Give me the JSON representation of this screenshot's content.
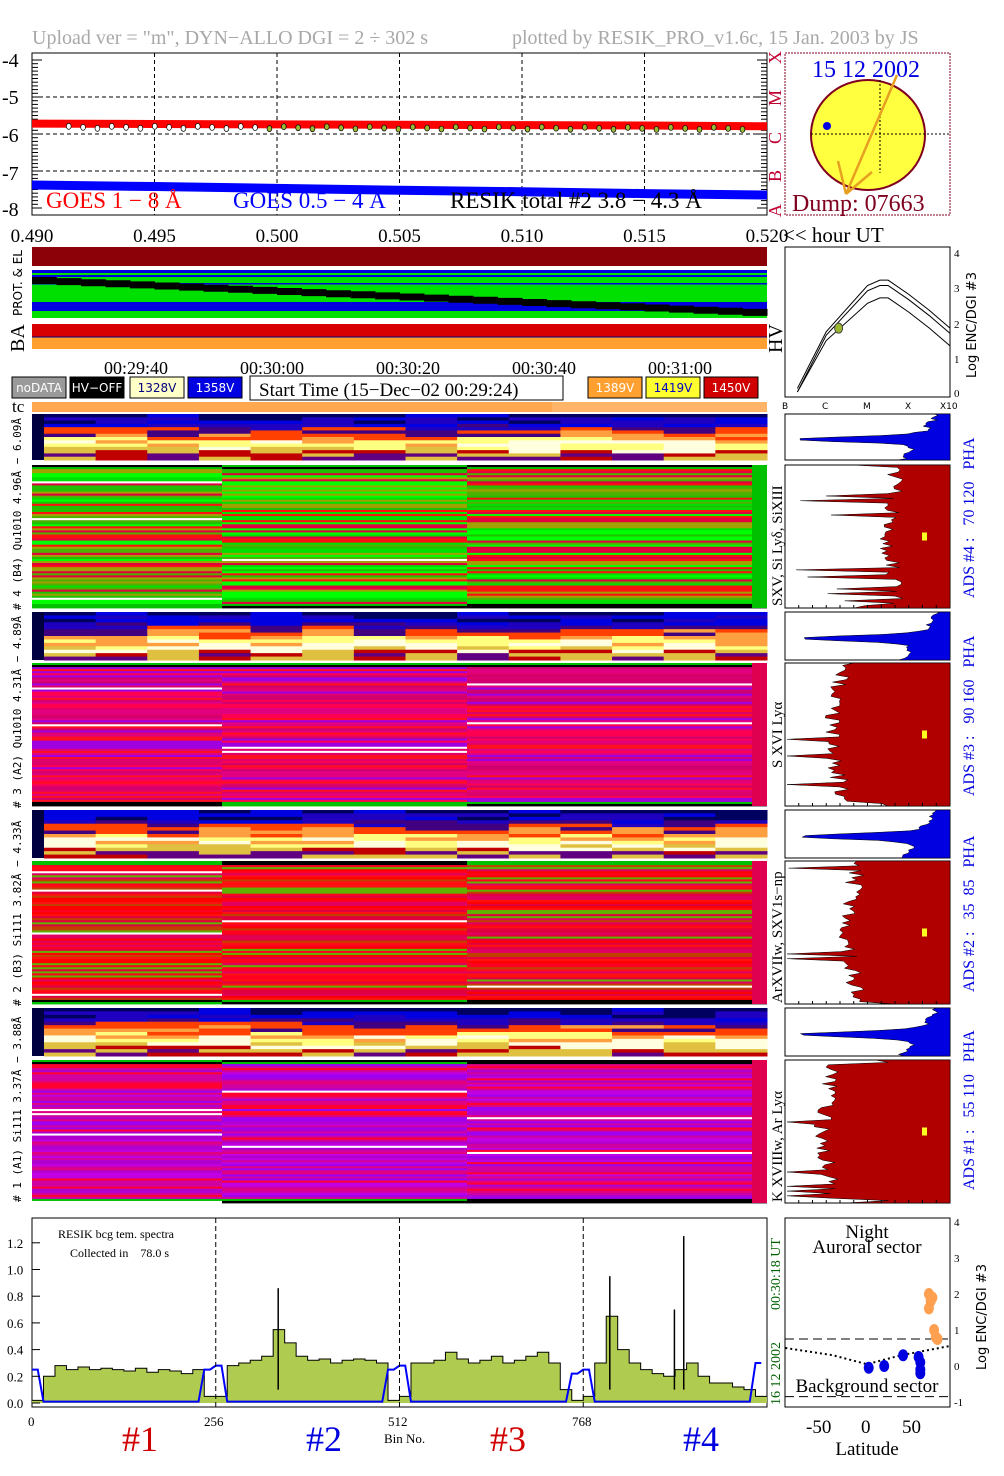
{
  "header": {
    "upload": "Upload ver = \"m\", DYN−ALLO DGI =   2 ÷ 302 s",
    "plotted": "plotted by RESIK_PRO_v1.6c, 15 Jan. 2003 by JS"
  },
  "goes_classes": [
    "A",
    "B",
    "C",
    "M",
    "X"
  ],
  "sun": {
    "date": "15 12 2002",
    "dump": "Dump: 07663"
  },
  "hour_axis_label": "<< hour UT",
  "side_labels": {
    "prot": "PROT. & EL",
    "ba": "BA",
    "hv": "HV",
    "tc": "tc"
  },
  "time_ticks": [
    "00:29:40",
    "00:30:00",
    "00:30:20",
    "00:30:40",
    "00:31:00"
  ],
  "start_time": "Start Time (15−Dec−02 00:29:24)",
  "legend_boxes": [
    {
      "label": "noDATA",
      "bg": "#9a9a9a",
      "fg": "#ffffff"
    },
    {
      "label": "HV−OFF",
      "bg": "#000000",
      "fg": "#ffffff"
    },
    {
      "label": "1328V",
      "bg": "#ffffc8",
      "fg": "#000080"
    },
    {
      "label": "1358V",
      "bg": "#0000e0",
      "fg": "#ffffff"
    },
    {
      "label": "1389V",
      "bg": "#ffa030",
      "fg": "#ffffff"
    },
    {
      "label": "1419V",
      "bg": "#ffff30",
      "fg": "#0000c0"
    },
    {
      "label": "1450V",
      "bg": "#d00000",
      "fg": "#ffffff"
    }
  ],
  "channels": [
    {
      "left": "# 4 (B4) Qu1010 4.96Å − 6.09Å",
      "lines": "SXV, Si Lyδ, SiXIII",
      "ads": "ADS #4 :   70 120   PHA",
      "palette": "green"
    },
    {
      "left": "# 3 (A2) Qu1010 4.31Å − 4.89Å",
      "lines": "S XVI Lyα",
      "ads": "ADS #3 :   90 160   PHA",
      "palette": "magenta"
    },
    {
      "left": "# 2 (B3) Si111 3.82Å − 4.33Å",
      "lines": "ArXVIIw, SXV1s−np",
      "ads": "ADS #2 :   35  85   PHA",
      "palette": "red"
    },
    {
      "left": "# 1 (A1) Si111 3.37Å − 3.88Å",
      "lines": "K XVIIIw, Ar Lyα",
      "ads": "ADS #1 :   55 110   PHA",
      "palette": "purple"
    }
  ],
  "hist_class_ticks": [
    "B",
    "C",
    "M",
    "X",
    "X10"
  ],
  "bottom": {
    "title": "RESIK bcg tem. spectra",
    "collected": "Collected in    78.0 s",
    "date": "16 12 2002",
    "time": "00:30:18 UT",
    "bin_label": "Bin No.",
    "detectors": [
      {
        "label": "#1",
        "color": "#d00000"
      },
      {
        "label": "#2",
        "color": "#0000e0"
      },
      {
        "label": "#3",
        "color": "#d00000"
      },
      {
        "label": "#4",
        "color": "#0000e0"
      }
    ]
  },
  "latitude_panel": {
    "night": "Night",
    "auroral": "Auroral sector",
    "background": "Background sector"
  },
  "colors": {
    "goes_long": "#ff0000",
    "goes_short": "#0000ff",
    "resik": "#9ab830",
    "sun": "#ffff40",
    "sun_rim": "#800020",
    "hist": "#b00000",
    "pha": "#0000e0",
    "spectrum_fill": "#b0cc50",
    "bcg_line": "#0000ff",
    "date_green": "#006000"
  },
  "chart_data": [
    {
      "type": "line",
      "title": "",
      "ylabel": "",
      "xlabel": "<< hour UT",
      "ylim": [
        -8.2,
        -3.9
      ],
      "xlim": [
        0.49,
        0.52
      ],
      "yticks": [
        "-4",
        "-5",
        "-6",
        "-7",
        "-8"
      ],
      "xticks": [
        "0.490",
        "0.495",
        "0.500",
        "0.505",
        "0.510",
        "0.515",
        "0.520"
      ],
      "grid": true,
      "x": [
        0.49,
        0.495,
        0.5,
        0.505,
        0.51,
        0.515,
        0.52
      ],
      "series": [
        {
          "name": "GOES 1 − 8 Å",
          "values": [
            -5.72,
            -5.73,
            -5.74,
            -5.75,
            -5.76,
            -5.77,
            -5.79
          ]
        },
        {
          "name": "GOES 0.5 − 4 Å",
          "values": [
            -7.38,
            -7.42,
            -7.47,
            -7.52,
            -7.56,
            -7.61,
            -7.65
          ]
        },
        {
          "name": "RESIK total #2  3.8 − 4.3 Å",
          "values": [
            -5.82,
            -5.82,
            -5.83,
            -5.84,
            -5.84,
            -5.85,
            -5.85
          ]
        }
      ]
    },
    {
      "type": "line",
      "ylabel": "Log ENC/DGI #3",
      "xticks": [
        "B",
        "C",
        "M",
        "X",
        "X10"
      ],
      "yticks": [
        "0",
        "1",
        "2",
        "3",
        "4"
      ],
      "ylim": [
        0,
        4
      ],
      "x": [
        0.3,
        1,
        2,
        2.3,
        2.5,
        3,
        3.5,
        4
      ],
      "series": [
        {
          "values": [
            0.1,
            1.7,
            3.0,
            3.15,
            3.15,
            2.75,
            2.3,
            1.8
          ]
        },
        {
          "values": [
            0.0,
            1.6,
            2.85,
            3.0,
            3.0,
            2.6,
            2.15,
            1.65
          ]
        },
        {
          "values": [
            0.0,
            1.45,
            2.5,
            2.65,
            2.65,
            2.25,
            1.8,
            1.3
          ]
        }
      ],
      "point": {
        "x": 1.3,
        "y": 1.8
      }
    },
    {
      "type": "area",
      "title": "RESIK bcg tem. spectra",
      "xlabel": "Bin No.",
      "xticks": [
        "0",
        "256",
        "512",
        "768"
      ],
      "yticks": [
        "0.0",
        "0.2",
        "0.4",
        "0.6",
        "0.8",
        "1.0",
        "1.2"
      ],
      "ylim": [
        0,
        1.38
      ],
      "xlim": [
        0,
        1024
      ],
      "bin_step": 16,
      "series": [
        {
          "name": "spectrum",
          "values": [
            0.02,
            0.2,
            0.28,
            0.25,
            0.27,
            0.25,
            0.26,
            0.25,
            0.24,
            0.26,
            0.23,
            0.25,
            0.24,
            0.22,
            0.25,
            0.05,
            0.05,
            0.28,
            0.3,
            0.32,
            0.35,
            0.55,
            0.45,
            0.35,
            0.32,
            0.33,
            0.3,
            0.32,
            0.33,
            0.32,
            0.3,
            0.02,
            0.05,
            0.3,
            0.3,
            0.32,
            0.38,
            0.33,
            0.3,
            0.32,
            0.35,
            0.3,
            0.32,
            0.35,
            0.38,
            0.3,
            0.1,
            0.02,
            0.05,
            0.3,
            0.65,
            0.4,
            0.3,
            0.25,
            0.22,
            0.2,
            0.25,
            0.3,
            0.2,
            0.15,
            0.15,
            0.12,
            0.1,
            0.05
          ]
        },
        {
          "name": "background",
          "values": [
            0.25,
            0.01,
            0.01,
            0.01,
            0.01,
            0.01,
            0.01,
            0.01,
            0.01,
            0.01,
            0.01,
            0.01,
            0.01,
            0.01,
            0.01,
            0.25,
            0.28,
            0.01,
            0.01,
            0.01,
            0.01,
            0.01,
            0.01,
            0.01,
            0.01,
            0.01,
            0.01,
            0.01,
            0.01,
            0.01,
            0.01,
            0.25,
            0.28,
            0.01,
            0.01,
            0.01,
            0.01,
            0.01,
            0.01,
            0.01,
            0.01,
            0.01,
            0.01,
            0.01,
            0.01,
            0.01,
            0.01,
            0.22,
            0.25,
            0.01,
            0.01,
            0.01,
            0.01,
            0.01,
            0.01,
            0.01,
            0.01,
            0.01,
            0.01,
            0.01,
            0.01,
            0.01,
            0.01,
            0.3
          ]
        }
      ],
      "peaks": [
        {
          "bin": 343,
          "value": 0.86
        },
        {
          "bin": 805,
          "value": 0.95
        },
        {
          "bin": 908,
          "value": 1.25
        },
        {
          "bin": 895,
          "value": 0.7
        }
      ]
    },
    {
      "type": "scatter",
      "xlabel": "Latitude",
      "ylabel": "Log ENC/DGI #3",
      "xticks": [
        "-50",
        "0",
        "50"
      ],
      "yticks": [
        "-1",
        "0",
        "1",
        "2",
        "3",
        "4"
      ],
      "xlim": [
        -95,
        96
      ],
      "ylim": [
        -1.05,
        4.1
      ],
      "thresholds": [
        0.75,
        -0.85
      ],
      "series": [
        {
          "name": "auroral",
          "color": "#ffa050",
          "points": [
            [
              72,
              2.0
            ],
            [
              74,
              1.8
            ],
            [
              72,
              1.6
            ],
            [
              76,
              1.9
            ],
            [
              78,
              1.0
            ],
            [
              80,
              0.8
            ],
            [
              82,
              0.75
            ]
          ]
        },
        {
          "name": "background",
          "color": "#0000e0",
          "points": [
            [
              2,
              -0.05
            ],
            [
              20,
              0.0
            ],
            [
              42,
              0.3
            ],
            [
              62,
              0.1
            ],
            [
              62,
              -0.1
            ],
            [
              62,
              -0.2
            ],
            [
              60,
              0.25
            ]
          ]
        }
      ]
    }
  ]
}
